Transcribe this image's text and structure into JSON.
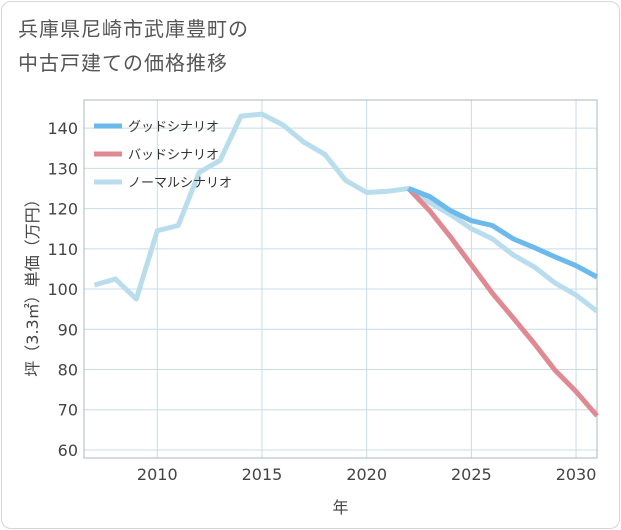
{
  "title_lines": [
    "兵庫県尼崎市武庫豊町の",
    "中古戸建ての価格推移"
  ],
  "chart_data": {
    "type": "line",
    "title": "兵庫県尼崎市武庫豊町の中古戸建ての価格推移",
    "xlabel": "年",
    "ylabel": "坪（3.3㎡）単価（万円）",
    "xlim": [
      2006.5,
      2031
    ],
    "ylim": [
      58,
      147
    ],
    "xticks": [
      2010,
      2015,
      2020,
      2025,
      2030
    ],
    "yticks": [
      60,
      70,
      80,
      90,
      100,
      110,
      120,
      130,
      140
    ],
    "legend_position": "top-left",
    "series": [
      {
        "name": "グッドシナリオ",
        "color": "#6cb9ec",
        "x": [
          2022,
          2023,
          2024,
          2025,
          2026,
          2027,
          2028,
          2029,
          2030,
          2031
        ],
        "values": [
          125,
          123,
          119.5,
          117,
          115.8,
          112.5,
          110.3,
          108,
          105.8,
          103
        ]
      },
      {
        "name": "バッドシナリオ",
        "color": "#df8a92",
        "x": [
          2022,
          2023,
          2024,
          2025,
          2026,
          2027,
          2028,
          2029,
          2030,
          2031
        ],
        "values": [
          125,
          119.5,
          113,
          106,
          99,
          92.8,
          86.5,
          79.8,
          74.5,
          68.5
        ]
      },
      {
        "name": "ノーマルシナリオ",
        "color": "#b9dded",
        "x": [
          2007,
          2008,
          2009,
          2010,
          2011,
          2012,
          2013,
          2014,
          2015,
          2016,
          2017,
          2018,
          2019,
          2020,
          2021,
          2022,
          2023,
          2024,
          2025,
          2026,
          2027,
          2028,
          2029,
          2030,
          2031
        ],
        "values": [
          101,
          102.5,
          97.5,
          114.5,
          115.8,
          129,
          132,
          143,
          143.5,
          140.8,
          136.5,
          133.5,
          127,
          124,
          124.3,
          125,
          121.5,
          118.5,
          115,
          112.5,
          108.5,
          105.5,
          101.5,
          98.5,
          94.5
        ]
      }
    ]
  }
}
